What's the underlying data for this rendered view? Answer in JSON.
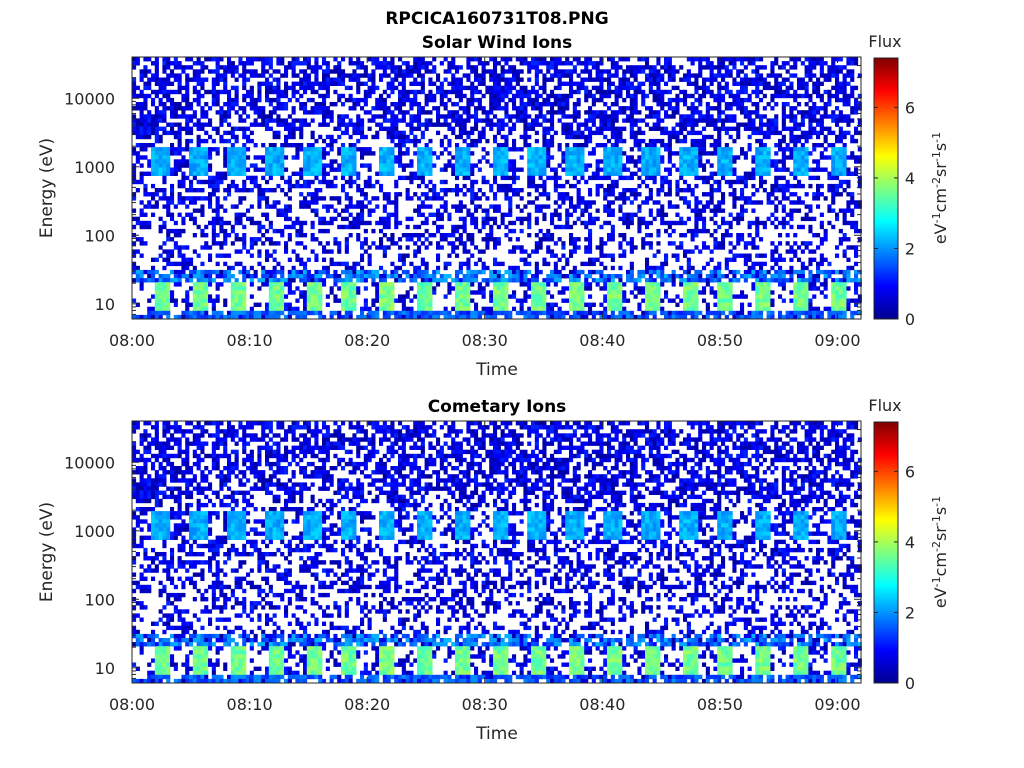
{
  "figure_title": "RPCICA160731T08.PNG",
  "colorbar": {
    "title": "Flux",
    "label_main": "eV",
    "label_sup1": "-1",
    "label_mid1": "cm",
    "label_sup2": "-2",
    "label_mid2": "sr",
    "label_sup3": "-1",
    "label_mid3": "s",
    "label_sup4": "-1",
    "range": [
      0,
      7.4
    ],
    "ticks": [
      "0",
      "2",
      "4",
      "6"
    ],
    "colormap": "jet"
  },
  "chart_data": [
    {
      "type": "heatmap",
      "title": "Solar Wind Ions",
      "xlabel": "Time",
      "ylabel": "Energy (eV)",
      "x_ticks": [
        "08:00",
        "08:10",
        "08:20",
        "08:30",
        "08:40",
        "08:50",
        "09:00"
      ],
      "y_ticks": [
        "10",
        "100",
        "1000",
        "10000"
      ],
      "y_scale": "log",
      "y_range": [
        6,
        40000
      ],
      "x_range": [
        "08:00",
        "09:02"
      ],
      "grid": false,
      "legend": "none",
      "bands": [
        {
          "energy_range": [
            8,
            20
          ],
          "flux": 3.6,
          "period_min": 3.2,
          "description": "periodic high-flux blocks"
        },
        {
          "energy_range": [
            700,
            2000
          ],
          "flux": 2.2,
          "period_min": 3.2,
          "description": "periodic medium-flux blocks"
        },
        {
          "energy_range": [
            6,
            40000
          ],
          "flux": 0.6,
          "description": "sparse low-level background"
        }
      ]
    },
    {
      "type": "heatmap",
      "title": "Cometary Ions",
      "xlabel": "Time",
      "ylabel": "Energy (eV)",
      "x_ticks": [
        "08:00",
        "08:10",
        "08:20",
        "08:30",
        "08:40",
        "08:50",
        "09:00"
      ],
      "y_ticks": [
        "10",
        "100",
        "1000",
        "10000"
      ],
      "y_scale": "log",
      "y_range": [
        6,
        40000
      ],
      "x_range": [
        "08:00",
        "09:02"
      ],
      "grid": false,
      "legend": "none",
      "bands": [
        {
          "energy_range": [
            8,
            20
          ],
          "flux": 3.6,
          "period_min": 3.2,
          "description": "periodic high-flux blocks"
        },
        {
          "energy_range": [
            700,
            2000
          ],
          "flux": 2.2,
          "period_min": 3.2,
          "description": "periodic medium-flux blocks"
        },
        {
          "energy_range": [
            6,
            40000
          ],
          "flux": 0.6,
          "description": "sparse low-level background"
        }
      ]
    }
  ]
}
